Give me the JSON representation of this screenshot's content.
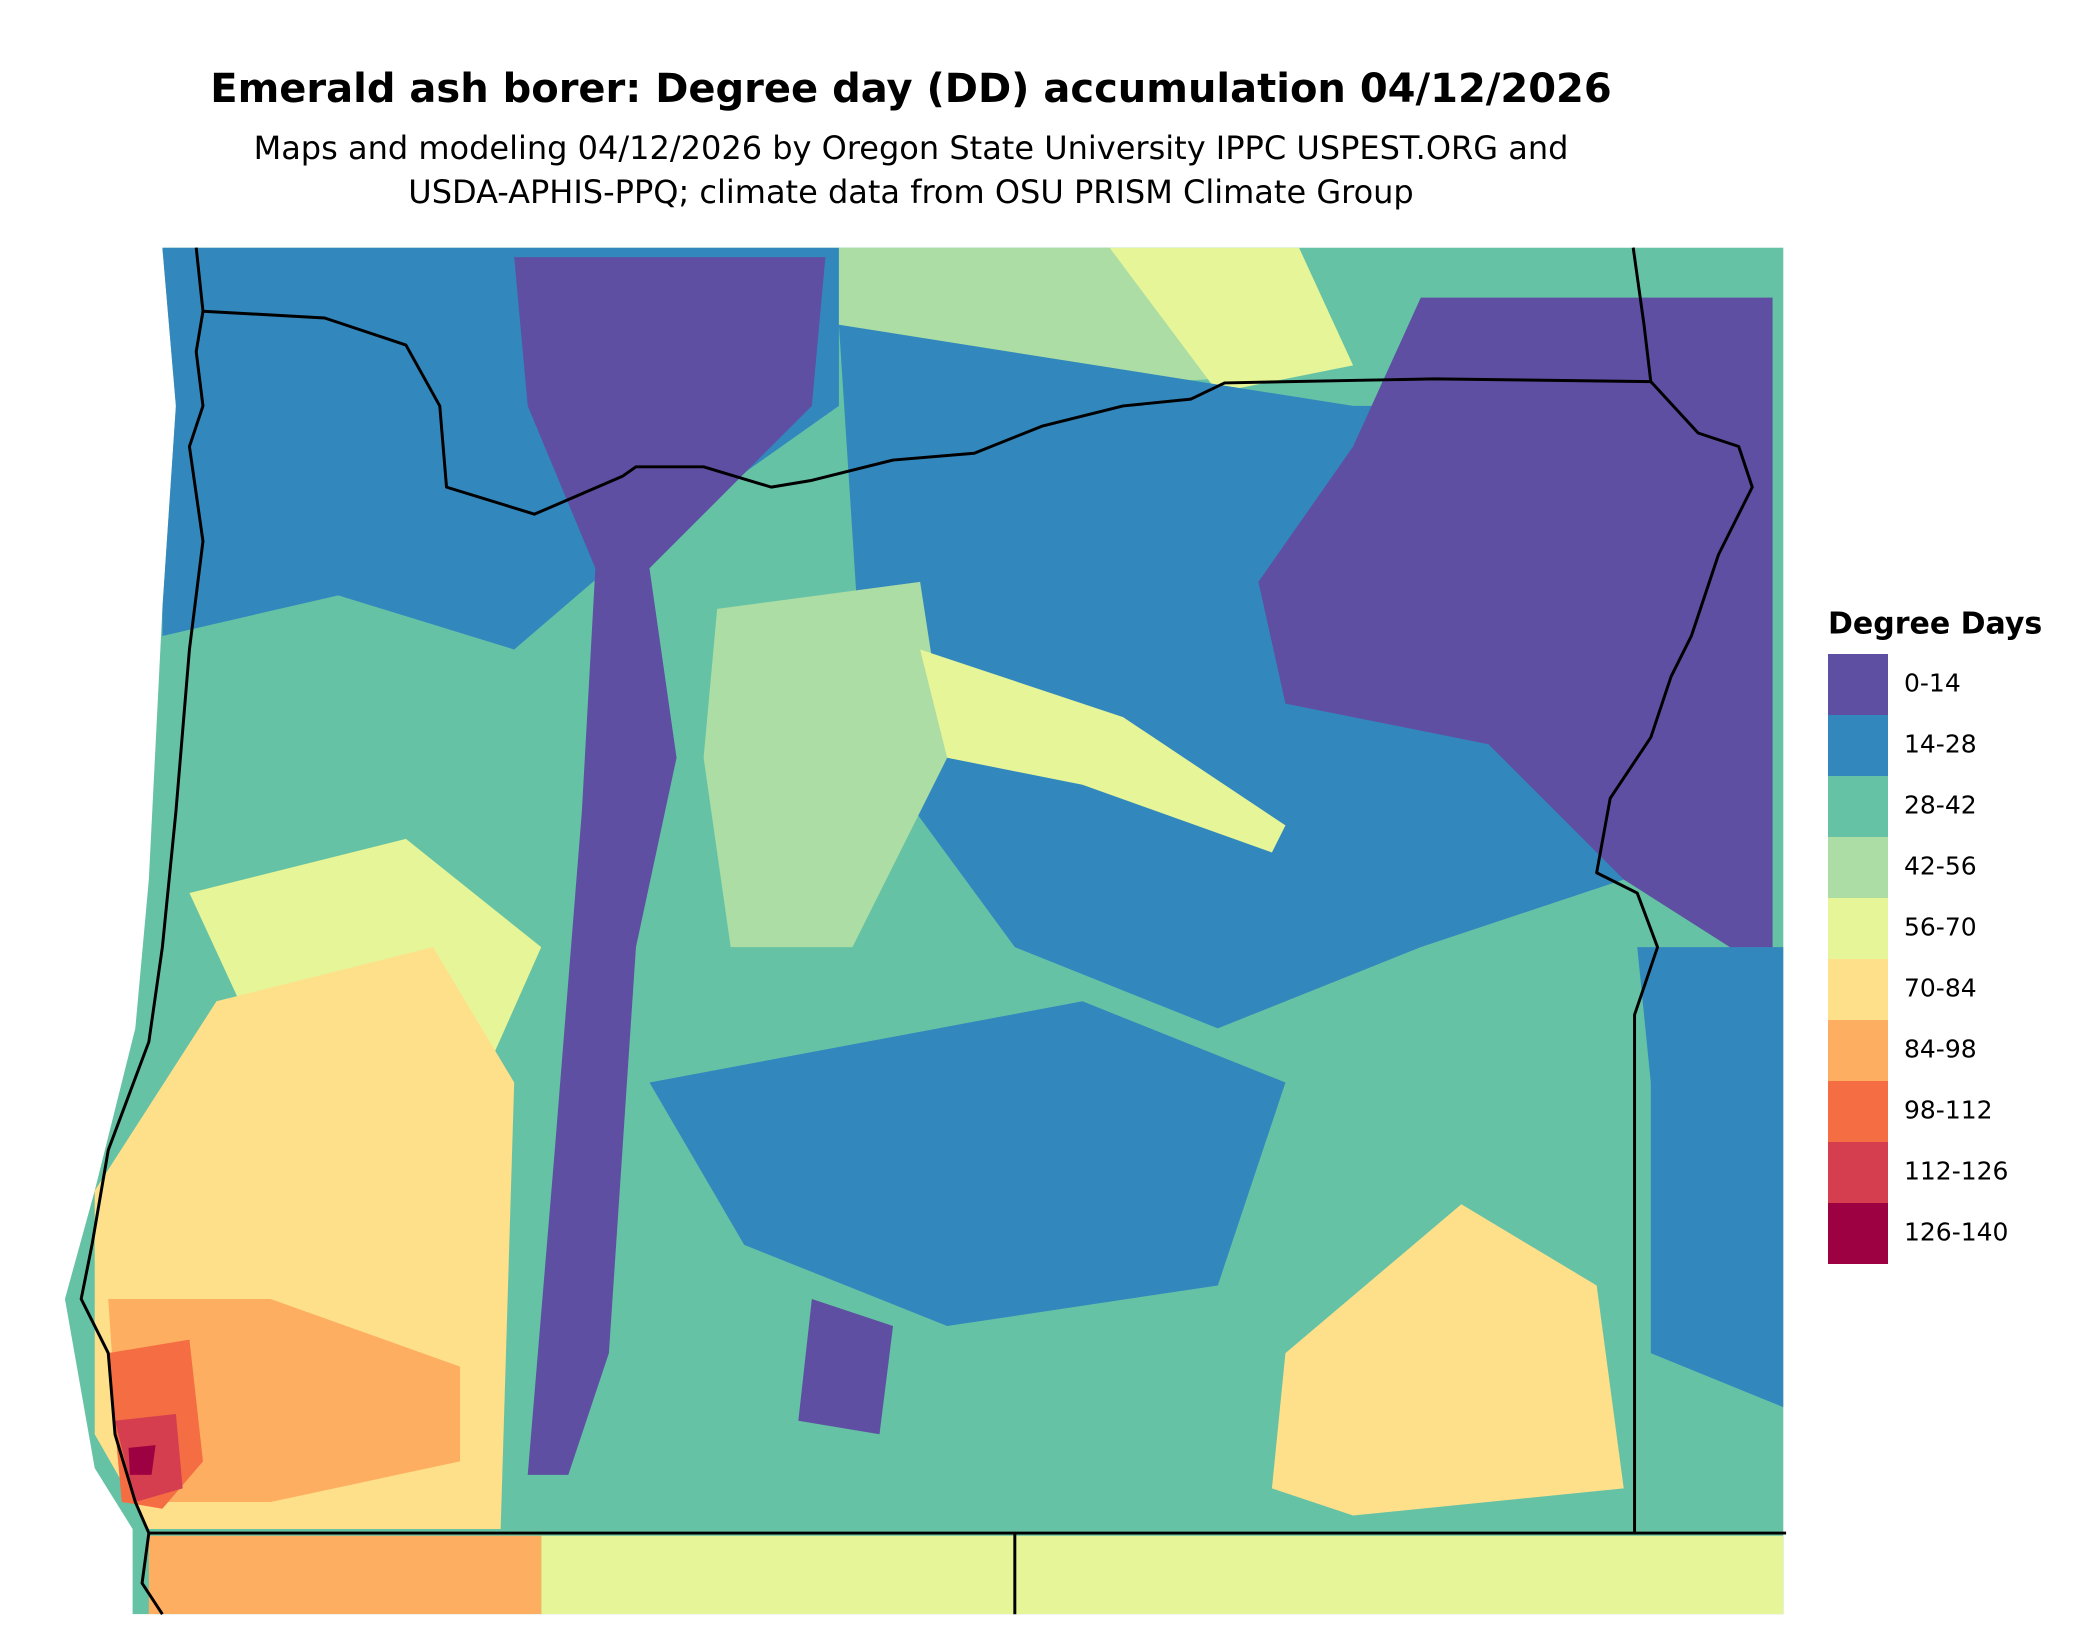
{
  "title": "Emerald ash borer: Degree day (DD) accumulation 04/12/2026",
  "subtitle": [
    "Maps and modeling 04/12/2026 by Oregon State University IPPC USPEST.ORG and",
    "USDA-APHIS-PPQ; climate data from OSU PRISM Climate Group"
  ],
  "legend": {
    "title": "Degree Days",
    "items": [
      {
        "label": "0-14",
        "color": "#5e4fa2"
      },
      {
        "label": "14-28",
        "color": "#3288bd"
      },
      {
        "label": "28-42",
        "color": "#66c2a5"
      },
      {
        "label": "42-56",
        "color": "#abdda4"
      },
      {
        "label": "56-70",
        "color": "#e6f598"
      },
      {
        "label": "70-84",
        "color": "#fee08b"
      },
      {
        "label": "84-98",
        "color": "#fdae61"
      },
      {
        "label": "98-112",
        "color": "#f46d43"
      },
      {
        "label": "112-126",
        "color": "#d53e4f"
      },
      {
        "label": "126-140",
        "color": "#9e0142"
      }
    ]
  }
}
